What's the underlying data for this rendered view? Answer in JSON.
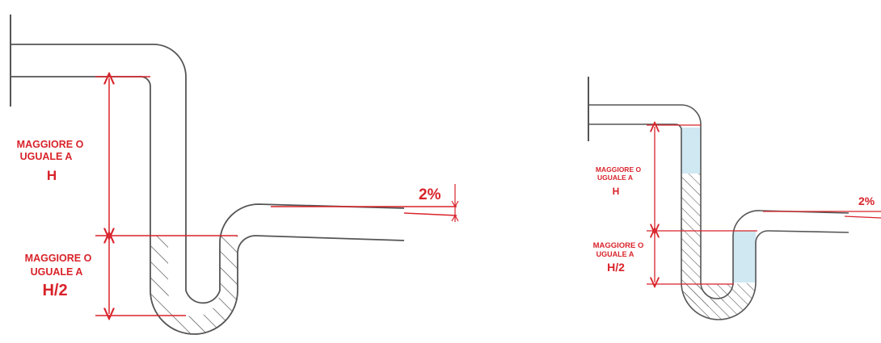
{
  "colors": {
    "pipe": "#555555",
    "dimension": "#d8232a",
    "water": "#cfe8f2",
    "hatch": "#555555"
  },
  "left_diagram": {
    "label_upper": [
      "MAGGIORE O",
      "UGUALE A",
      "H"
    ],
    "label_lower": [
      "MAGGIORE O",
      "UGUALE A",
      "H/2"
    ],
    "slope": "2%"
  },
  "right_diagram": {
    "label_upper": [
      "MAGGIORE O",
      "UGUALE A",
      "H"
    ],
    "label_lower": [
      "MAGGIORE O",
      "UGUALE A",
      "H/2"
    ],
    "slope": "2%"
  }
}
